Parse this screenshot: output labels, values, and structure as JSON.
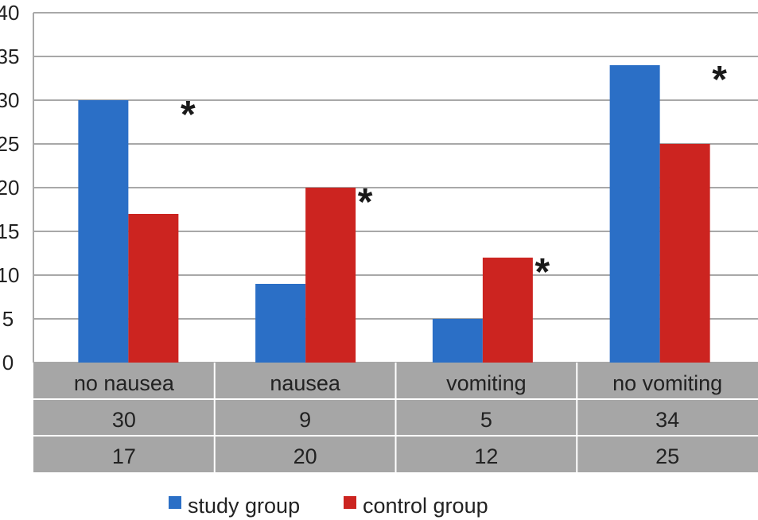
{
  "chart_data": {
    "type": "bar",
    "categories": [
      "no nausea",
      "nausea",
      "vomiting",
      "no vomiting"
    ],
    "series": [
      {
        "name": "study group",
        "color": "#2b6fc6",
        "values": [
          30,
          9,
          5,
          34
        ]
      },
      {
        "name": "control group",
        "color": "#cc2420",
        "values": [
          17,
          20,
          12,
          25
        ]
      }
    ],
    "yticks": [
      "0",
      "5",
      "10",
      "15",
      "20",
      "25",
      "30",
      "35",
      "40"
    ],
    "ylim": [
      0,
      40
    ],
    "grid": true,
    "legend": "bottom",
    "significance_marks": [
      {
        "category": "no nausea",
        "label": "*"
      },
      {
        "category": "nausea",
        "label": "*"
      },
      {
        "category": "vomiting",
        "label": "*"
      },
      {
        "category": "no vomiting",
        "label": "*"
      }
    ],
    "table": {
      "background": "#a6a6a6",
      "rows": [
        {
          "series": "study group",
          "values": [
            "30",
            "9",
            "5",
            "34"
          ]
        },
        {
          "series": "control group",
          "values": [
            "17",
            "20",
            "12",
            "25"
          ]
        }
      ]
    }
  }
}
